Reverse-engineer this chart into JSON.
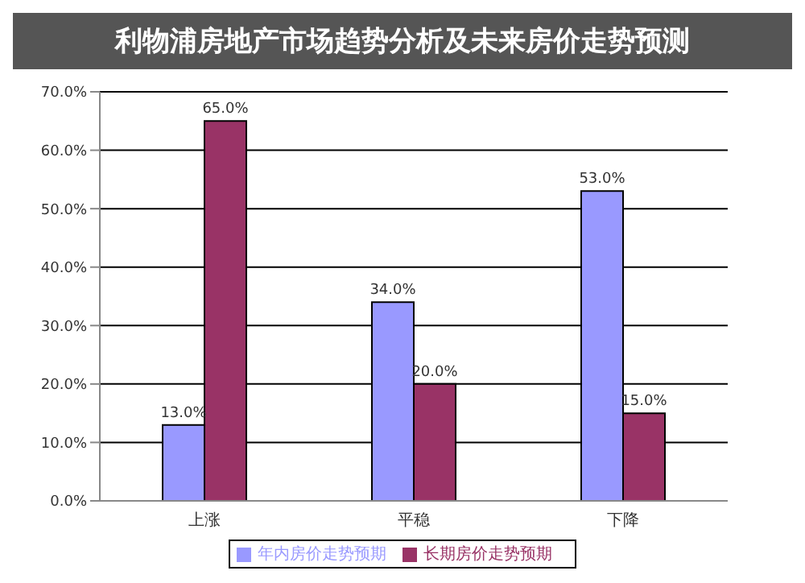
{
  "chart_data": {
    "type": "bar",
    "title": "利物浦房地产市场趋势分析及未来房价走势预测",
    "categories": [
      "上涨",
      "平稳",
      "下降"
    ],
    "series": [
      {
        "name": "年内房价走势预期",
        "color": "#9999ff",
        "values": [
          13.0,
          34.0,
          53.0
        ],
        "value_labels": [
          "13.0%",
          "34.0%",
          "53.0%"
        ]
      },
      {
        "name": "长期房价走势预期",
        "color": "#993366",
        "values": [
          65.0,
          20.0,
          15.0
        ],
        "value_labels": [
          "65.0%",
          "20.0%",
          "15.0%"
        ]
      }
    ],
    "ylim": [
      0,
      70
    ],
    "yticks": [
      {
        "value": 0,
        "label": "0.0%"
      },
      {
        "value": 10,
        "label": "10.0%"
      },
      {
        "value": 20,
        "label": "20.0%"
      },
      {
        "value": 30,
        "label": "30.0%"
      },
      {
        "value": 40,
        "label": "40.0%"
      },
      {
        "value": 50,
        "label": "50.0%"
      },
      {
        "value": 60,
        "label": "60.0%"
      },
      {
        "value": 70,
        "label": "70.0%"
      }
    ],
    "grid": "y",
    "legend": "bottom"
  }
}
